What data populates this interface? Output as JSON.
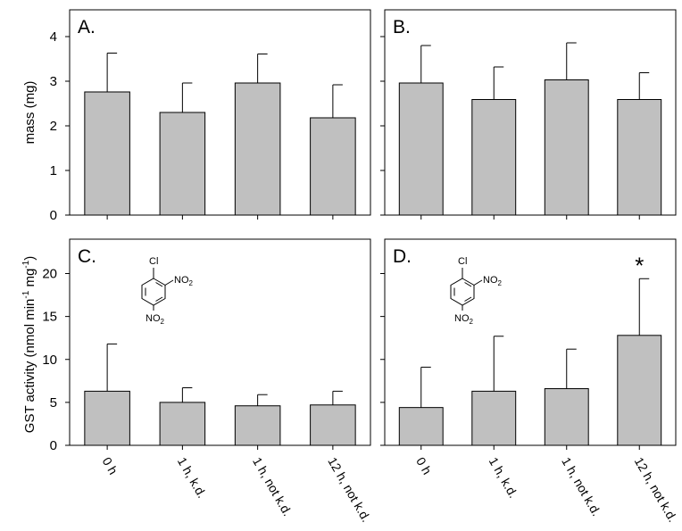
{
  "chart_data": [
    {
      "type": "bar",
      "panel_label": "A.",
      "ylabel": "mass (mg)",
      "ylim": [
        0,
        4.6
      ],
      "yticks": [
        0,
        1,
        2,
        3,
        4
      ],
      "categories": [
        "0 h",
        "1 h, k.d.",
        "1 h, not k.d.",
        "12 h, not k.d."
      ],
      "values": [
        2.76,
        2.3,
        2.96,
        2.18
      ],
      "errors": [
        0.87,
        0.66,
        0.65,
        0.74
      ],
      "show_xticklabels": false,
      "significance": []
    },
    {
      "type": "bar",
      "panel_label": "B.",
      "ylabel": "",
      "ylim": [
        0,
        4.6
      ],
      "yticks": [],
      "categories": [
        "0 h",
        "1 h, k.d.",
        "1 h, not k.d.",
        "12 h, not k.d."
      ],
      "values": [
        2.96,
        2.59,
        3.03,
        2.59
      ],
      "errors": [
        0.84,
        0.73,
        0.83,
        0.6
      ],
      "show_xticklabels": false,
      "significance": []
    },
    {
      "type": "bar",
      "panel_label": "C.",
      "ylabel": "GST activity (nmol min-1 mg-1)",
      "ylim": [
        0,
        24
      ],
      "yticks": [
        0,
        5,
        10,
        15,
        20
      ],
      "categories": [
        "0 h",
        "1 h, k.d.",
        "1 h, not k.d.",
        "12 h, not k.d."
      ],
      "values": [
        6.3,
        5.0,
        4.6,
        4.7
      ],
      "errors": [
        5.5,
        1.7,
        1.3,
        1.6
      ],
      "show_xticklabels": true,
      "significance": []
    },
    {
      "type": "bar",
      "panel_label": "D.",
      "ylabel": "",
      "ylim": [
        0,
        24
      ],
      "yticks": [],
      "categories": [
        "0 h",
        "1 h, k.d.",
        "1 h, not k.d.",
        "12 h, not k.d."
      ],
      "values": [
        4.4,
        6.3,
        6.6,
        12.8
      ],
      "errors": [
        4.7,
        6.4,
        4.6,
        6.6
      ],
      "show_xticklabels": true,
      "significance": [
        "",
        "",
        "",
        "*"
      ]
    }
  ],
  "ylabel_mass": "mass (mg)",
  "ylabel_gst": {
    "prefix": "GST activity (nmol min",
    "sup1": "-1",
    "middle": " mg",
    "sup2": "-1",
    "suffix": ")"
  },
  "molecule": {
    "substituent_top": "Cl",
    "substituent_side": "NO",
    "substituent_bottom": "NO",
    "subscript": "2"
  },
  "colors": {
    "bar_fill": "#c0c0c0",
    "bar_stroke": "#000000",
    "axis": "#000000",
    "background": "#ffffff"
  }
}
